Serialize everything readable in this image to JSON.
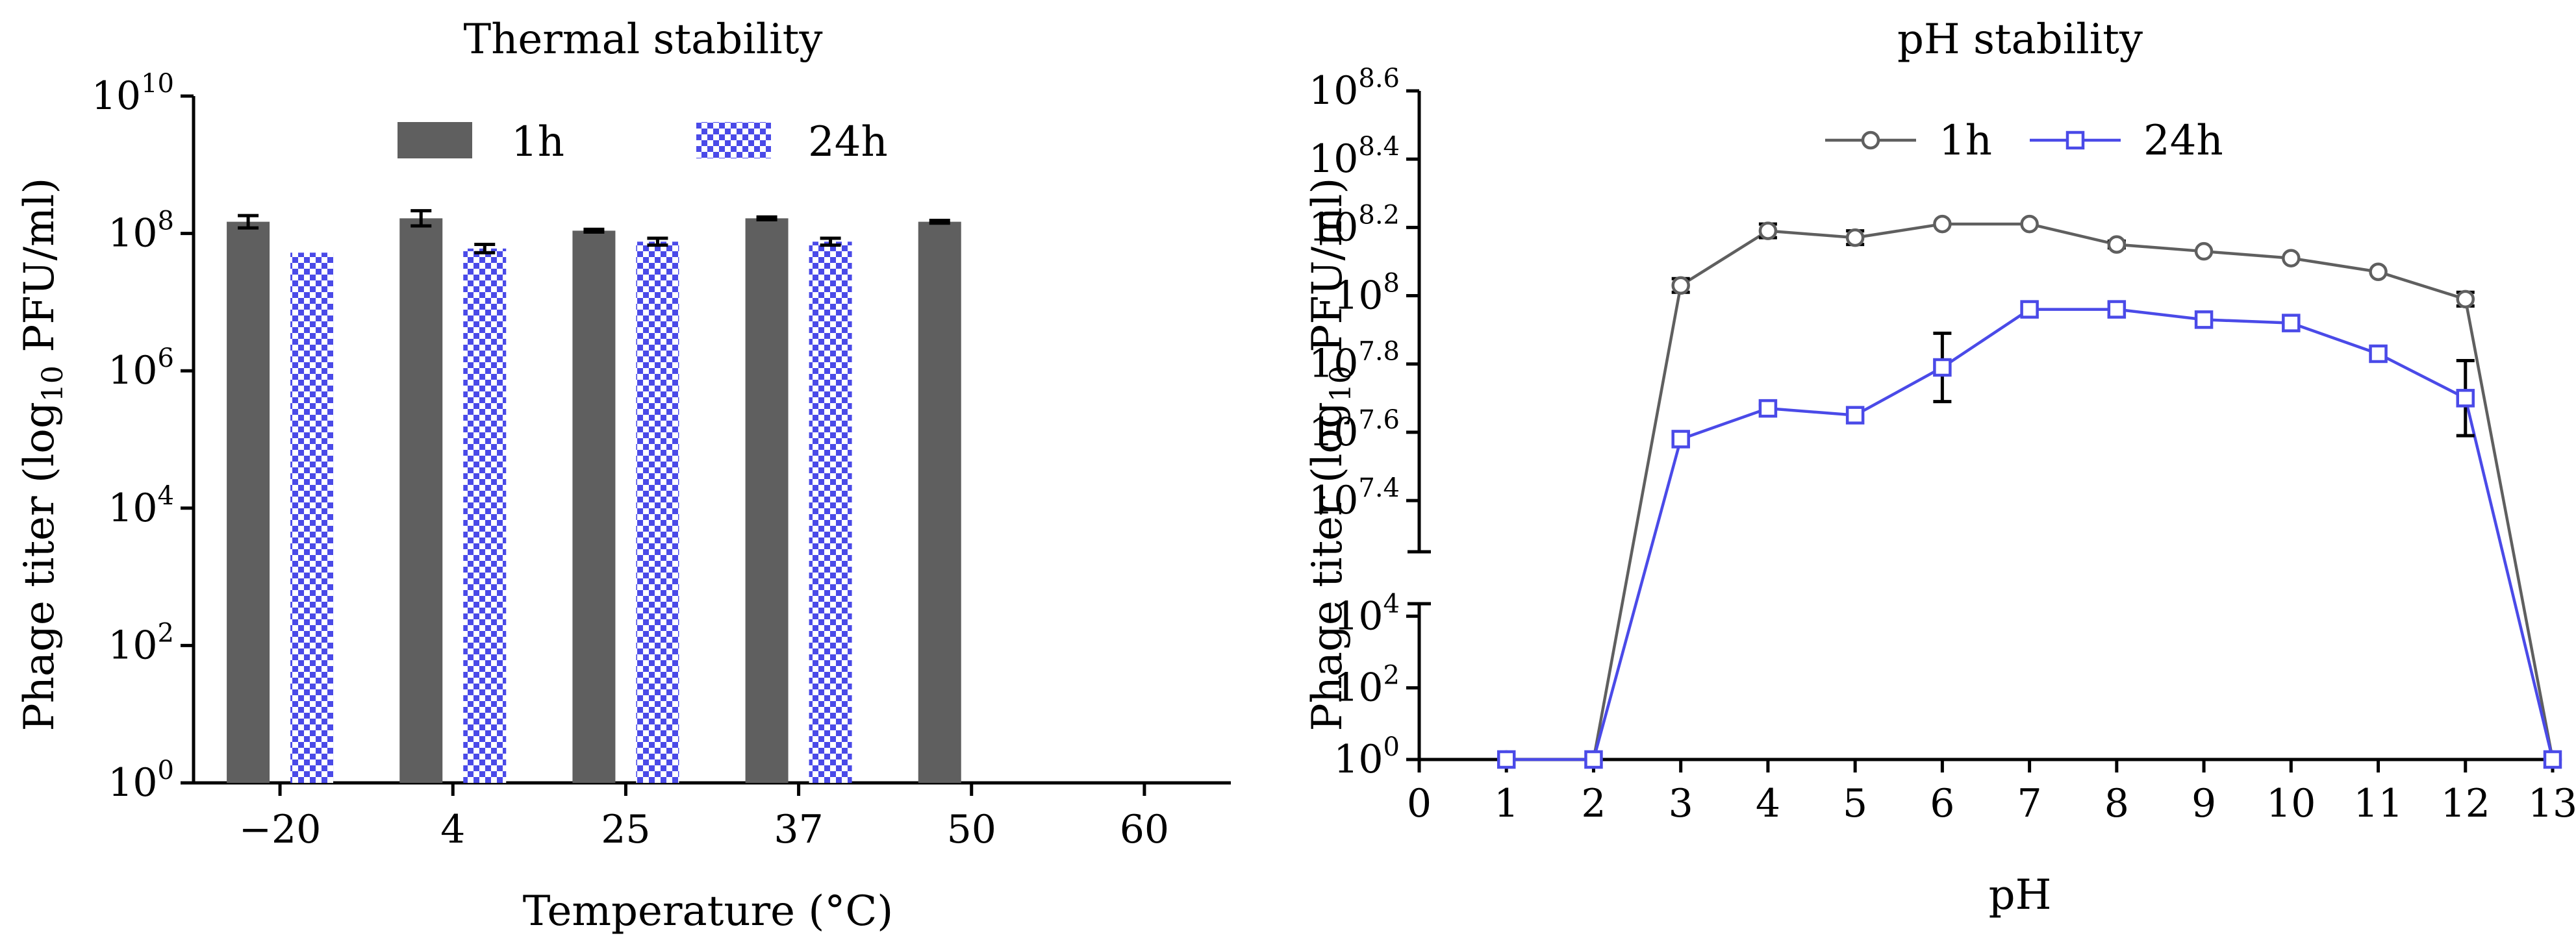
{
  "chart_data": [
    {
      "type": "bar",
      "title": "Thermal stability",
      "xlabel": "Temperature (°C)",
      "ylabel_prefix": "Phage titer (log",
      "ylabel_sub": "10",
      "ylabel_suffix": " PFU/ml)",
      "y_scale": "log10",
      "ylim_exp": [
        0,
        10
      ],
      "y_ticks": [
        {
          "base": "10",
          "exp": "0",
          "value_exp": 0
        },
        {
          "base": "10",
          "exp": "2",
          "value_exp": 2
        },
        {
          "base": "10",
          "exp": "4",
          "value_exp": 4
        },
        {
          "base": "10",
          "exp": "6",
          "value_exp": 6
        },
        {
          "base": "10",
          "exp": "8",
          "value_exp": 8
        },
        {
          "base": "10",
          "exp": "10",
          "value_exp": 10
        }
      ],
      "categories": [
        "−20",
        "4",
        "25",
        "37",
        "50",
        "60"
      ],
      "series": [
        {
          "name": "1h",
          "color": "#5f5f5f",
          "pattern": "solid",
          "log_values": [
            8.17,
            8.22,
            8.04,
            8.22,
            8.17,
            null
          ],
          "log_err": [
            0.09,
            0.11,
            0.02,
            0.02,
            0.02,
            null
          ]
        },
        {
          "name": "24h",
          "color": "#4a4ae8",
          "pattern": "checker",
          "log_values": [
            7.72,
            7.78,
            7.88,
            7.88,
            null,
            null
          ],
          "log_err": [
            0,
            0.06,
            0.05,
            0.05,
            null,
            null
          ]
        }
      ],
      "legend_position": "top"
    },
    {
      "type": "line",
      "title": "pH stability",
      "xlabel": "pH",
      "ylabel_prefix": "Phage titer (log",
      "ylabel_sub": "10",
      "ylabel_suffix": " PFU/ml)",
      "y_scale": "log10 with broken axis",
      "upper_ylim_exp": [
        7.25,
        8.6
      ],
      "lower_ylim_exp": [
        0,
        4.35
      ],
      "upper_ticks": [
        {
          "base": "10",
          "exp": "7.4",
          "value_exp": 7.4
        },
        {
          "base": "10",
          "exp": "7.6",
          "value_exp": 7.6
        },
        {
          "base": "10",
          "exp": "7.8",
          "value_exp": 7.8
        },
        {
          "base": "10",
          "exp": "8",
          "value_exp": 8.0
        },
        {
          "base": "10",
          "exp": "8.2",
          "value_exp": 8.2
        },
        {
          "base": "10",
          "exp": "8.4",
          "value_exp": 8.4
        },
        {
          "base": "10",
          "exp": "8.6",
          "value_exp": 8.6
        }
      ],
      "lower_ticks": [
        {
          "base": "10",
          "exp": "0",
          "value_exp": 0
        },
        {
          "base": "10",
          "exp": "2",
          "value_exp": 2
        },
        {
          "base": "10",
          "exp": "4",
          "value_exp": 4
        }
      ],
      "x_ticks": [
        "0",
        "1",
        "2",
        "3",
        "4",
        "5",
        "6",
        "7",
        "8",
        "9",
        "10",
        "11",
        "12",
        "13"
      ],
      "x": [
        1,
        2,
        3,
        4,
        5,
        6,
        7,
        8,
        9,
        10,
        11,
        12,
        13
      ],
      "series": [
        {
          "name": "1h",
          "color": "#5f5f5f",
          "marker": "circle",
          "log_values": [
            0,
            0,
            8.03,
            8.19,
            8.17,
            8.21,
            8.21,
            8.15,
            8.13,
            8.11,
            8.07,
            7.99,
            0
          ],
          "log_err": [
            0,
            0,
            0.02,
            0.02,
            0.02,
            0,
            0,
            0.01,
            0,
            0,
            0,
            0.02,
            0
          ]
        },
        {
          "name": "24h",
          "color": "#4a4ae8",
          "marker": "square",
          "log_values": [
            0,
            0,
            7.58,
            7.67,
            7.65,
            7.79,
            7.96,
            7.96,
            7.93,
            7.92,
            7.83,
            7.7,
            0
          ],
          "log_err": [
            0,
            0,
            0.02,
            0.01,
            0,
            0.1,
            0.02,
            0.02,
            0,
            0,
            0.02,
            0.11,
            0
          ]
        }
      ],
      "legend_position": "top"
    }
  ]
}
